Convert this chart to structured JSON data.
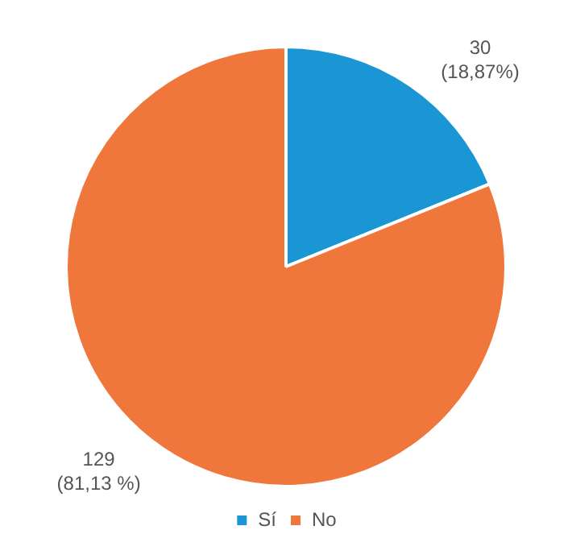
{
  "chart_data": {
    "type": "pie",
    "categories": [
      "Sí",
      "No"
    ],
    "values": [
      30,
      129
    ],
    "colors": [
      "#1a96d4",
      "#f0773c"
    ],
    "value_labels": [
      "30\n(18,87%)",
      "129\n(81,13 %)"
    ],
    "legend": "bottom"
  }
}
